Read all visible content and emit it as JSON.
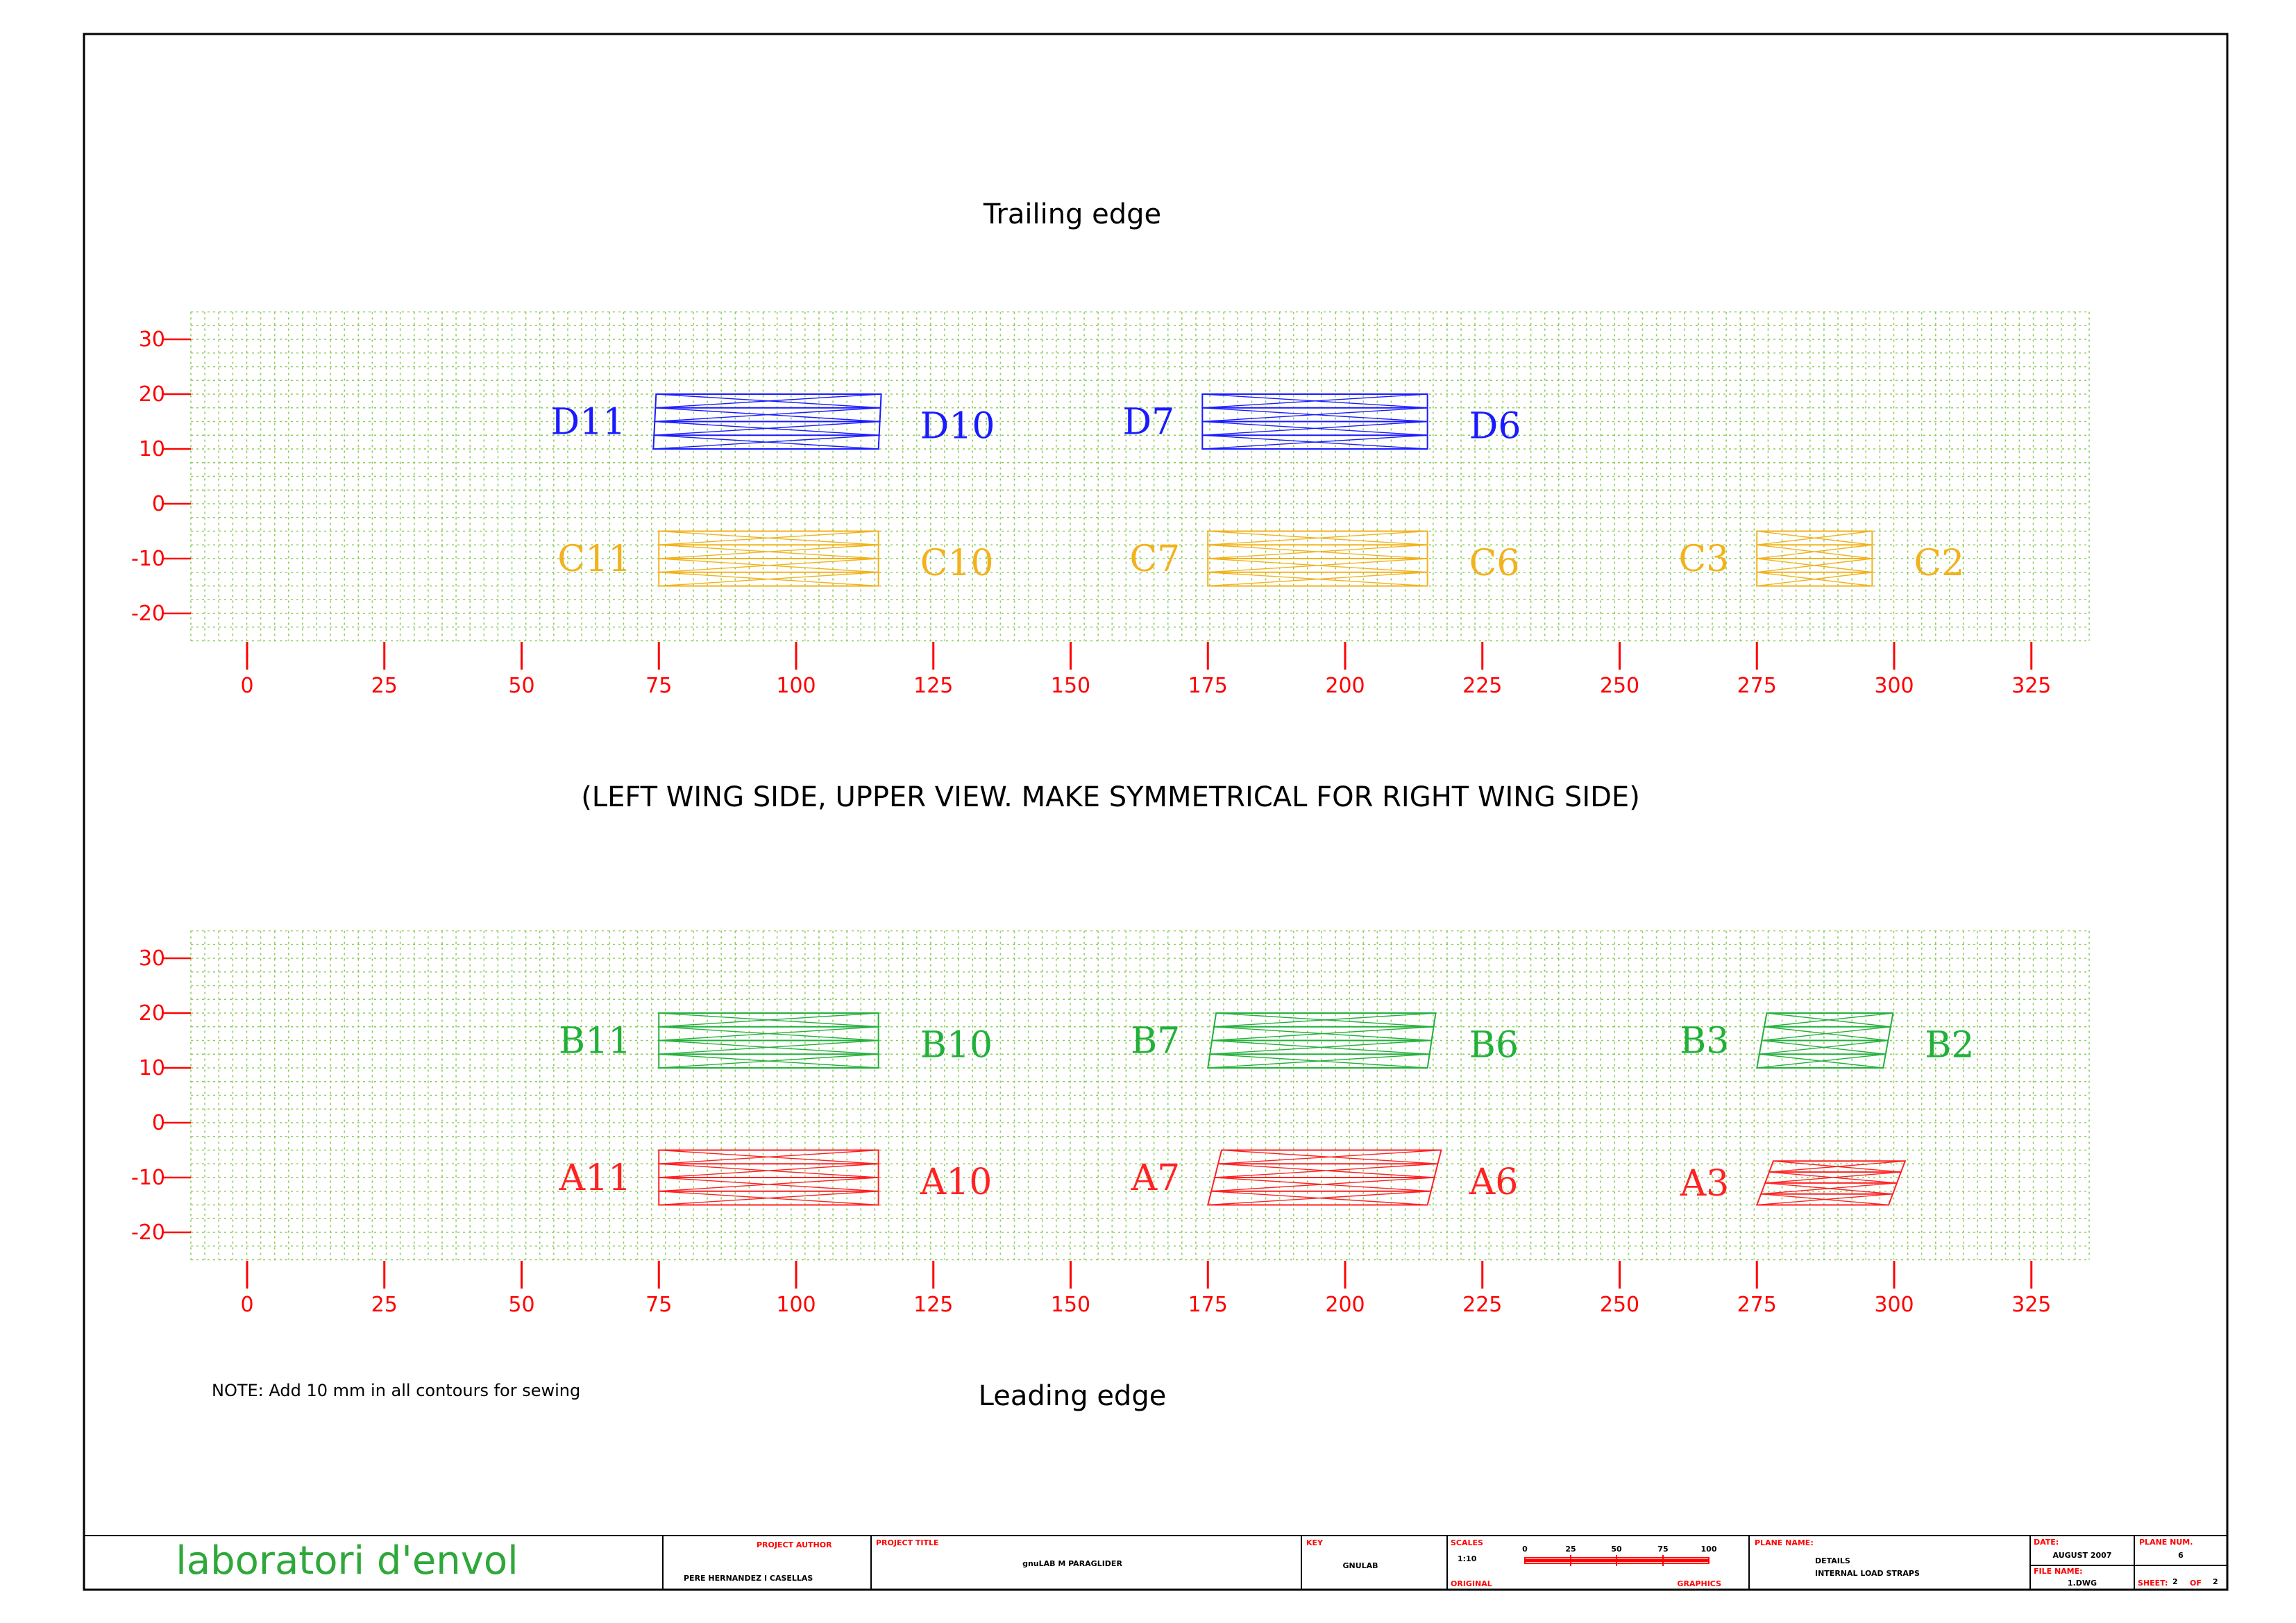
{
  "colors": {
    "grid": "#8ccc5a",
    "axis": "#ff0000",
    "D": "#1a1aff",
    "C": "#f2b21c",
    "B": "#22b03a",
    "A": "#ff2222",
    "frame": "#000000",
    "logo": "#2fa83a"
  },
  "headings": {
    "top": "Trailing edge",
    "middle": "(LEFT WING SIDE, UPPER VIEW. MAKE SYMMETRICAL FOR RIGHT WING SIDE)",
    "bottom": "Leading edge",
    "note": "NOTE: Add 10 mm in all contours for sewing"
  },
  "chart_data": [
    {
      "type": "diagram",
      "name": "upper-panel",
      "xlim": [
        -10,
        335
      ],
      "ylim": [
        -25,
        35
      ],
      "xticks": [
        0,
        25,
        50,
        75,
        100,
        125,
        150,
        175,
        200,
        225,
        250,
        275,
        300,
        325
      ],
      "yticks": [
        30,
        20,
        10,
        0,
        -10,
        -20
      ],
      "straps": [
        {
          "group": "D",
          "start_label": "D11",
          "end_label": "D10",
          "x0": 74,
          "x1": 115,
          "y0": 10,
          "y1": 20,
          "skew": 0.5
        },
        {
          "group": "D",
          "start_label": "D7",
          "end_label": "D6",
          "x0": 174,
          "x1": 215,
          "y0": 10,
          "y1": 20,
          "skew": 0
        },
        {
          "group": "C",
          "start_label": "C11",
          "end_label": "C10",
          "x0": 75,
          "x1": 115,
          "y0": -15,
          "y1": -5,
          "skew": 0
        },
        {
          "group": "C",
          "start_label": "C7",
          "end_label": "C6",
          "x0": 175,
          "x1": 215,
          "y0": -15,
          "y1": -5,
          "skew": 0
        },
        {
          "group": "C",
          "start_label": "C3",
          "end_label": "C2",
          "x0": 275,
          "x1": 296,
          "y0": -15,
          "y1": -5,
          "skew": 0
        }
      ]
    },
    {
      "type": "diagram",
      "name": "lower-panel",
      "xlim": [
        -10,
        335
      ],
      "ylim": [
        -25,
        35
      ],
      "xticks": [
        0,
        25,
        50,
        75,
        100,
        125,
        150,
        175,
        200,
        225,
        250,
        275,
        300,
        325
      ],
      "yticks": [
        30,
        20,
        10,
        0,
        -10,
        -20
      ],
      "straps": [
        {
          "group": "B",
          "start_label": "B11",
          "end_label": "B10",
          "x0": 75,
          "x1": 115,
          "y0": 10,
          "y1": 20,
          "skew": 0
        },
        {
          "group": "B",
          "start_label": "B7",
          "end_label": "B6",
          "x0": 175,
          "x1": 215,
          "y0": 10,
          "y1": 20,
          "skew": 1.5
        },
        {
          "group": "B",
          "start_label": "B3",
          "end_label": "B2",
          "x0": 275,
          "x1": 298,
          "y0": 10,
          "y1": 20,
          "skew": 1.8
        },
        {
          "group": "A",
          "start_label": "A11",
          "end_label": "A10",
          "x0": 75,
          "x1": 115,
          "y0": -15,
          "y1": -5,
          "skew": 0
        },
        {
          "group": "A",
          "start_label": "A7",
          "end_label": "A6",
          "x0": 175,
          "x1": 215,
          "y0": -15,
          "y1": -5,
          "skew": 2.5
        },
        {
          "group": "A",
          "start_label": "A3",
          "end_label": "",
          "x0": 275,
          "x1": 299,
          "y0": -15,
          "y1": -7,
          "skew": 3
        }
      ]
    }
  ],
  "title_block": {
    "logo": "laboratori d'envol",
    "author_heading": "PROJECT AUTHOR",
    "author": "PERE HERNANDEZ I CASELLAS",
    "project_title_heading": "PROJECT TITLE",
    "project_title": "gnuLAB M PARAGLIDER",
    "key_heading": "KEY",
    "key": "GNULAB",
    "scales_heading": "SCALES",
    "scale": "1:10",
    "scale_ticks": [
      "0",
      "25",
      "50",
      "75",
      "100"
    ],
    "original_label": "ORIGINAL",
    "graphics_label": "GRAPHICS",
    "plane_name_heading": "PLANE NAME:",
    "plane_name_1": "DETAILS",
    "plane_name_2": "INTERNAL LOAD STRAPS",
    "date_heading": "DATE:",
    "date": "AUGUST 2007",
    "plane_num_heading": "PLANE NUM.",
    "plane_num": "6",
    "file_name_heading": "FILE NAME:",
    "file_name": "1.DWG",
    "sheet_label": "SHEET:",
    "sheet_num": "2",
    "of_label": "OF",
    "sheet_total": "2"
  }
}
